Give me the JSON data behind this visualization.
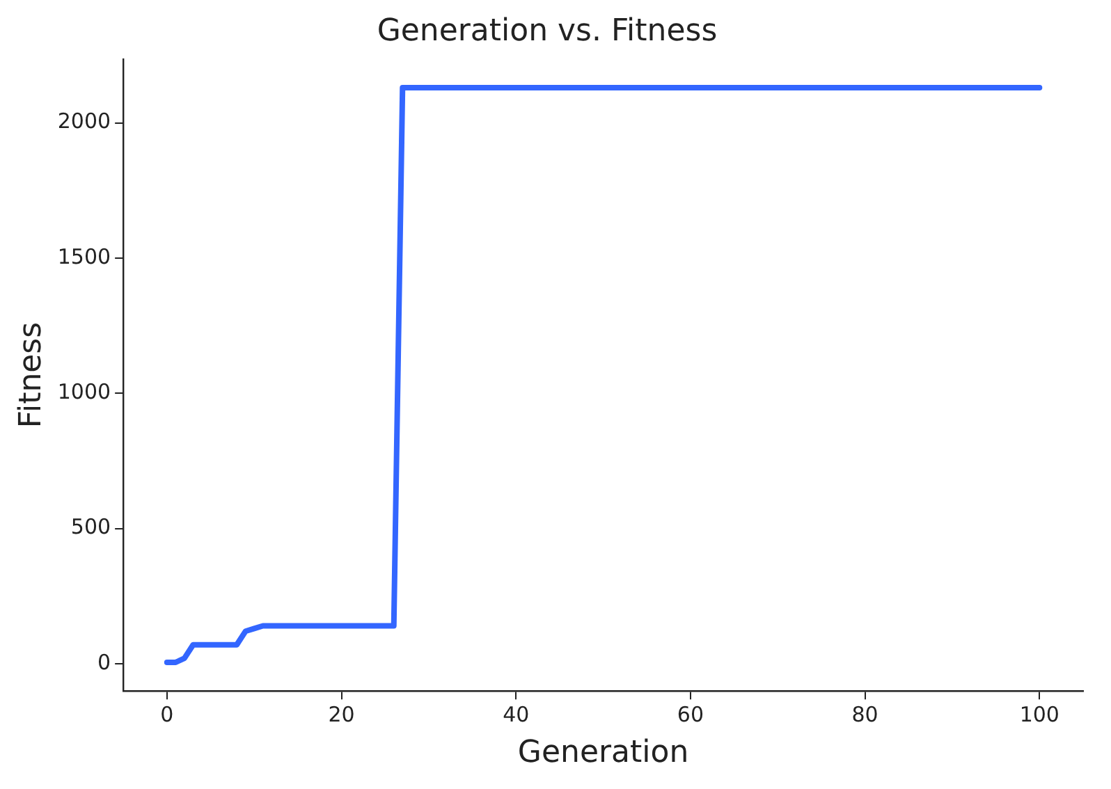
{
  "chart_data": {
    "type": "line",
    "title": "Generation vs. Fitness",
    "xlabel": "Generation",
    "ylabel": "Fitness",
    "x": [
      0,
      1,
      2,
      3,
      8,
      9,
      10,
      11,
      26,
      27,
      100
    ],
    "series": [
      {
        "color": "#3366ff",
        "values": [
          5,
          5,
          20,
          70,
          70,
          120,
          130,
          140,
          140,
          2130,
          2130
        ]
      }
    ],
    "xlim": [
      -5,
      105
    ],
    "xticks": [
      0,
      20,
      40,
      60,
      80,
      100
    ],
    "ylim": [
      -101,
      2236
    ],
    "yticks": [
      0,
      500,
      1000,
      1500,
      2000
    ],
    "grid": false,
    "legend": false,
    "marker": "none",
    "line_style": "solid"
  }
}
